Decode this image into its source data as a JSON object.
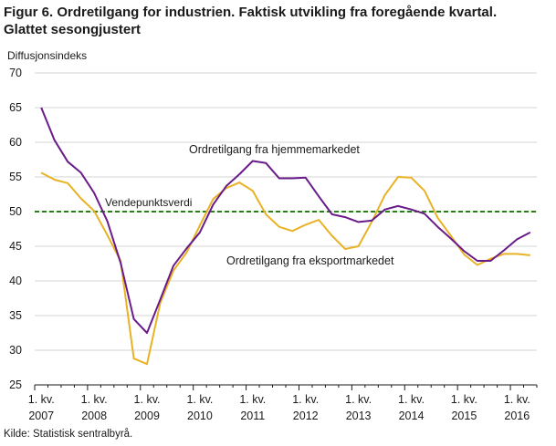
{
  "figure": {
    "title_line1": "Figur 6. Ordretilgang for industrien. Faktisk utvikling fra foregående kvartal.",
    "title_line2": "Glattet sesongjustert",
    "source": "Kilde: Statistisk sentralbyrå."
  },
  "chart_data": {
    "type": "line",
    "ylabel": "Diffusjonsindeks",
    "ylim": [
      25,
      70
    ],
    "yticks": [
      25,
      30,
      35,
      40,
      45,
      50,
      55,
      60,
      65,
      70
    ],
    "x_tick_labels": [
      {
        "line1": "1. kv.",
        "line2": "2007"
      },
      {
        "line1": "1. kv.",
        "line2": "2008"
      },
      {
        "line1": "1. kv.",
        "line2": "2009"
      },
      {
        "line1": "1. kv.",
        "line2": "2010"
      },
      {
        "line1": "1. kv.",
        "line2": "2011"
      },
      {
        "line1": "1. kv.",
        "line2": "2012"
      },
      {
        "line1": "1. kv.",
        "line2": "2013"
      },
      {
        "line1": "1. kv.",
        "line2": "2014"
      },
      {
        "line1": "1. kv.",
        "line2": "2015"
      },
      {
        "line1": "1. kv.",
        "line2": "2016"
      }
    ],
    "reference_line": {
      "label": "Vendepunktsverdi",
      "value": 50,
      "color": "#2e7d1e"
    },
    "series": [
      {
        "name": "Ordretilgang  fra hjemmemarkedet",
        "color": "#6a1b8a",
        "values": [
          65.0,
          60.3,
          57.2,
          55.6,
          52.7,
          48.6,
          42.6,
          34.5,
          32.5,
          37.3,
          42.2,
          44.7,
          47.0,
          51.0,
          53.7,
          55.4,
          57.3,
          57.0,
          54.8,
          54.8,
          54.9,
          52.2,
          49.6,
          49.2,
          48.5,
          48.7,
          50.3,
          50.8,
          50.3,
          49.7,
          47.8,
          46.1,
          44.3,
          42.9,
          42.9,
          44.4,
          46.0,
          47.0
        ]
      },
      {
        "name": "Ordretilgang  fra eksportmarkedet",
        "color": "#e8b224",
        "values": [
          55.6,
          54.6,
          54.1,
          51.9,
          50.1,
          46.6,
          42.9,
          28.8,
          28.0,
          36.8,
          41.5,
          44.1,
          48.0,
          51.8,
          53.4,
          54.2,
          53.0,
          49.6,
          47.8,
          47.2,
          48.1,
          48.8,
          46.5,
          44.6,
          45.0,
          48.5,
          52.4,
          55.0,
          54.9,
          53.0,
          49.1,
          46.5,
          43.8,
          42.3,
          43.2,
          43.9,
          43.9,
          43.7
        ]
      }
    ],
    "annotations": [
      {
        "text": "Ordretilgang  fra hjemmemarkedet",
        "series": 0
      },
      {
        "text": "Ordretilgang  fra eksportmarkedet",
        "series": 1
      }
    ],
    "grid": "horizontal",
    "legend": "inline annotations"
  }
}
